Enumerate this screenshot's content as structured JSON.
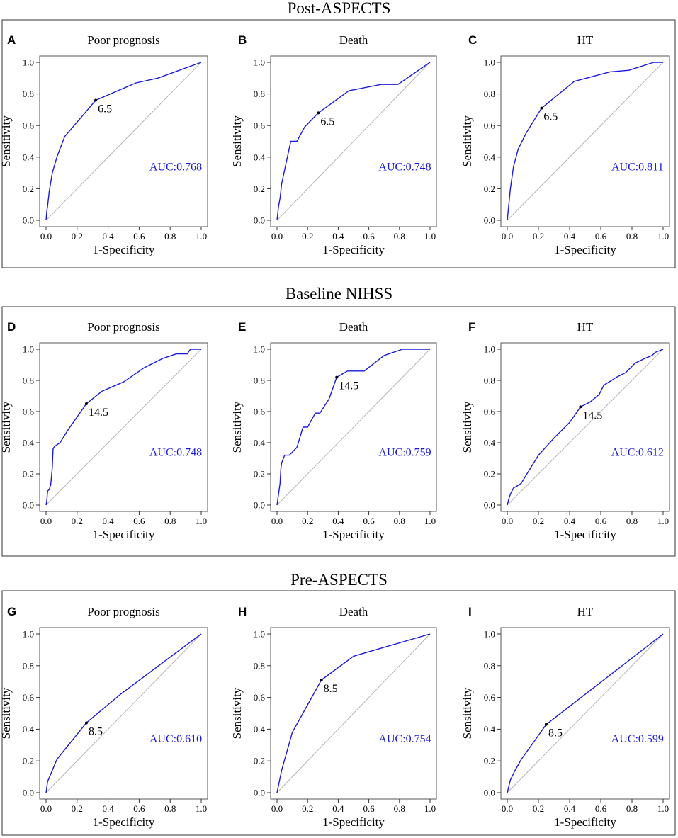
{
  "colors": {
    "curve": "#1a1adb",
    "auc_text": "#1a1adb",
    "diagonal": "#b4b4b4",
    "frame": "#555555"
  },
  "groups": [
    {
      "title": "Post-ASPECTS"
    },
    {
      "title": "Baseline NIHSS"
    },
    {
      "title": "Pre-ASPECTS"
    }
  ],
  "chart_data": [
    {
      "type": "line",
      "panel": "A",
      "group": "Post-ASPECTS",
      "title": "Poor prognosis",
      "xlabel": "1-Specificity",
      "ylabel": "Sensitivity",
      "xlim": [
        0,
        1
      ],
      "ylim": [
        0,
        1
      ],
      "xticks": [
        "0.0",
        "0.2",
        "0.4",
        "0.6",
        "0.8",
        "1.0"
      ],
      "yticks": [
        "0.0",
        "0.2",
        "0.4",
        "0.6",
        "0.8",
        "1.0"
      ],
      "auc": "AUC:0.768",
      "cutoff_label": "6.5",
      "cutoff_point": [
        0.32,
        0.76
      ],
      "x": [
        0,
        0.005,
        0.01,
        0.02,
        0.04,
        0.07,
        0.12,
        0.32,
        0.58,
        0.72,
        1.0
      ],
      "y": [
        0,
        0.06,
        0.09,
        0.18,
        0.3,
        0.4,
        0.53,
        0.76,
        0.87,
        0.9,
        1.0
      ]
    },
    {
      "type": "line",
      "panel": "B",
      "group": "Post-ASPECTS",
      "title": "Death",
      "xlabel": "1-Specificity",
      "ylabel": "Sensitivity",
      "xlim": [
        0,
        1
      ],
      "ylim": [
        0,
        1
      ],
      "xticks": [
        "0.0",
        "0.2",
        "0.4",
        "0.6",
        "0.8",
        "1.0"
      ],
      "yticks": [
        "0.0",
        "0.2",
        "0.4",
        "0.6",
        "0.8",
        "1.0"
      ],
      "auc": "AUC:0.748",
      "cutoff_label": "6.5",
      "cutoff_point": [
        0.27,
        0.68
      ],
      "x": [
        0,
        0.01,
        0.02,
        0.03,
        0.05,
        0.07,
        0.09,
        0.13,
        0.18,
        0.27,
        0.47,
        0.68,
        0.79,
        1.0
      ],
      "y": [
        0,
        0.09,
        0.14,
        0.23,
        0.32,
        0.41,
        0.5,
        0.5,
        0.59,
        0.68,
        0.82,
        0.86,
        0.86,
        1.0
      ]
    },
    {
      "type": "line",
      "panel": "C",
      "group": "Post-ASPECTS",
      "title": "HT",
      "xlabel": "1-Specificity",
      "ylabel": "Sensitivity",
      "xlim": [
        0,
        1
      ],
      "ylim": [
        0,
        1
      ],
      "xticks": [
        "0.0",
        "0.2",
        "0.4",
        "0.6",
        "0.8",
        "1.0"
      ],
      "yticks": [
        "0.0",
        "0.2",
        "0.4",
        "0.6",
        "0.8",
        "1.0"
      ],
      "auc": "AUC:0.811",
      "cutoff_label": "6.5",
      "cutoff_point": [
        0.22,
        0.71
      ],
      "x": [
        0,
        0.02,
        0.04,
        0.07,
        0.12,
        0.22,
        0.43,
        0.66,
        0.78,
        0.94,
        1.0
      ],
      "y": [
        0,
        0.2,
        0.34,
        0.45,
        0.55,
        0.71,
        0.88,
        0.94,
        0.95,
        1.0,
        1.0
      ]
    },
    {
      "type": "line",
      "panel": "D",
      "group": "Baseline NIHSS",
      "title": "Poor prognosis",
      "xlabel": "1-Specificity",
      "ylabel": "Sensitivity",
      "xlim": [
        0,
        1
      ],
      "ylim": [
        0,
        1
      ],
      "xticks": [
        "0.0",
        "0.2",
        "0.4",
        "0.6",
        "0.8",
        "1.0"
      ],
      "yticks": [
        "0.0",
        "0.2",
        "0.4",
        "0.6",
        "0.8",
        "1.0"
      ],
      "auc": "AUC:0.748",
      "cutoff_label": "14.5",
      "cutoff_point": [
        0.26,
        0.65
      ],
      "x": [
        0,
        0.005,
        0.01,
        0.02,
        0.03,
        0.04,
        0.045,
        0.05,
        0.06,
        0.09,
        0.14,
        0.26,
        0.36,
        0.5,
        0.63,
        0.75,
        0.84,
        0.91,
        0.93,
        1.0
      ],
      "y": [
        0,
        0.03,
        0.09,
        0.1,
        0.13,
        0.24,
        0.36,
        0.37,
        0.38,
        0.4,
        0.48,
        0.65,
        0.73,
        0.79,
        0.88,
        0.94,
        0.97,
        0.97,
        1.0,
        1.0
      ]
    },
    {
      "type": "line",
      "panel": "E",
      "group": "Baseline NIHSS",
      "title": "Death",
      "xlabel": "1-Specificity",
      "ylabel": "Sensitivity",
      "xlim": [
        0,
        1
      ],
      "ylim": [
        0,
        1
      ],
      "xticks": [
        "0.0",
        "0.2",
        "0.4",
        "0.6",
        "0.8",
        "1.0"
      ],
      "yticks": [
        "0.0",
        "0.2",
        "0.4",
        "0.6",
        "0.8",
        "1.0"
      ],
      "auc": "AUC:0.759",
      "cutoff_label": "14.5",
      "cutoff_point": [
        0.39,
        0.82
      ],
      "x": [
        0,
        0.02,
        0.025,
        0.03,
        0.05,
        0.08,
        0.1,
        0.13,
        0.17,
        0.2,
        0.25,
        0.28,
        0.34,
        0.39,
        0.46,
        0.57,
        0.7,
        0.82,
        1.0
      ],
      "y": [
        0,
        0.14,
        0.23,
        0.27,
        0.32,
        0.32,
        0.34,
        0.37,
        0.5,
        0.5,
        0.59,
        0.59,
        0.68,
        0.82,
        0.86,
        0.86,
        0.96,
        1.0,
        1.0
      ]
    },
    {
      "type": "line",
      "panel": "F",
      "group": "Baseline NIHSS",
      "title": "HT",
      "xlabel": "1-Specificity",
      "ylabel": "Sensitivity",
      "xlim": [
        0,
        1
      ],
      "ylim": [
        0,
        1
      ],
      "xticks": [
        "0.0",
        "0.2",
        "0.4",
        "0.6",
        "0.8",
        "1.0"
      ],
      "yticks": [
        "0.0",
        "0.2",
        "0.4",
        "0.6",
        "0.8",
        "1.0"
      ],
      "auc": "AUC:0.612",
      "cutoff_label": "14.5",
      "cutoff_point": [
        0.47,
        0.63
      ],
      "x": [
        0,
        0.01,
        0.02,
        0.04,
        0.06,
        0.09,
        0.12,
        0.2,
        0.3,
        0.4,
        0.47,
        0.53,
        0.59,
        0.62,
        0.67,
        0.7,
        0.76,
        0.82,
        0.88,
        0.93,
        0.95,
        1.0
      ],
      "y": [
        0,
        0.04,
        0.07,
        0.11,
        0.12,
        0.14,
        0.19,
        0.32,
        0.43,
        0.53,
        0.63,
        0.66,
        0.71,
        0.77,
        0.8,
        0.82,
        0.85,
        0.91,
        0.94,
        0.96,
        0.98,
        1.0
      ]
    },
    {
      "type": "line",
      "panel": "G",
      "group": "Pre-ASPECTS",
      "title": "Poor prognosis",
      "xlabel": "1-Specificity",
      "ylabel": "Sensitivity",
      "xlim": [
        0,
        1
      ],
      "ylim": [
        0,
        1
      ],
      "xticks": [
        "0.0",
        "0.2",
        "0.4",
        "0.6",
        "0.8",
        "1.0"
      ],
      "yticks": [
        "0.0",
        "0.2",
        "0.4",
        "0.6",
        "0.8",
        "1.0"
      ],
      "auc": "AUC:0.610",
      "cutoff_label": "8.5",
      "cutoff_point": [
        0.26,
        0.44
      ],
      "x": [
        0,
        0.01,
        0.07,
        0.26,
        0.48,
        1.0
      ],
      "y": [
        0,
        0.07,
        0.21,
        0.44,
        0.62,
        1.0
      ]
    },
    {
      "type": "line",
      "panel": "H",
      "group": "Pre-ASPECTS",
      "title": "Death",
      "xlabel": "1-Specificity",
      "ylabel": "Sensitivity",
      "xlim": [
        0,
        1
      ],
      "ylim": [
        0,
        1
      ],
      "xticks": [
        "0.0",
        "0.2",
        "0.4",
        "0.6",
        "0.8",
        "1.0"
      ],
      "yticks": [
        "0.0",
        "0.2",
        "0.4",
        "0.6",
        "0.8",
        "1.0"
      ],
      "auc": "AUC:0.754",
      "cutoff_label": "8.5",
      "cutoff_point": [
        0.29,
        0.71
      ],
      "x": [
        0,
        0.03,
        0.1,
        0.29,
        0.5,
        1.0
      ],
      "y": [
        0,
        0.14,
        0.38,
        0.71,
        0.86,
        1.0
      ]
    },
    {
      "type": "line",
      "panel": "I",
      "group": "Pre-ASPECTS",
      "title": "HT",
      "xlabel": "1-Specificity",
      "ylabel": "Sensitivity",
      "xlim": [
        0,
        1
      ],
      "ylim": [
        0,
        1
      ],
      "xticks": [
        "0.0",
        "0.2",
        "0.4",
        "0.6",
        "0.8",
        "1.0"
      ],
      "yticks": [
        "0.0",
        "0.2",
        "0.4",
        "0.6",
        "0.8",
        "1.0"
      ],
      "auc": "AUC:0.599",
      "cutoff_label": "8.5",
      "cutoff_point": [
        0.25,
        0.43
      ],
      "x": [
        0,
        0.01,
        0.02,
        0.05,
        0.09,
        0.25,
        1.0
      ],
      "y": [
        0,
        0.04,
        0.08,
        0.14,
        0.21,
        0.43,
        1.0
      ]
    }
  ]
}
